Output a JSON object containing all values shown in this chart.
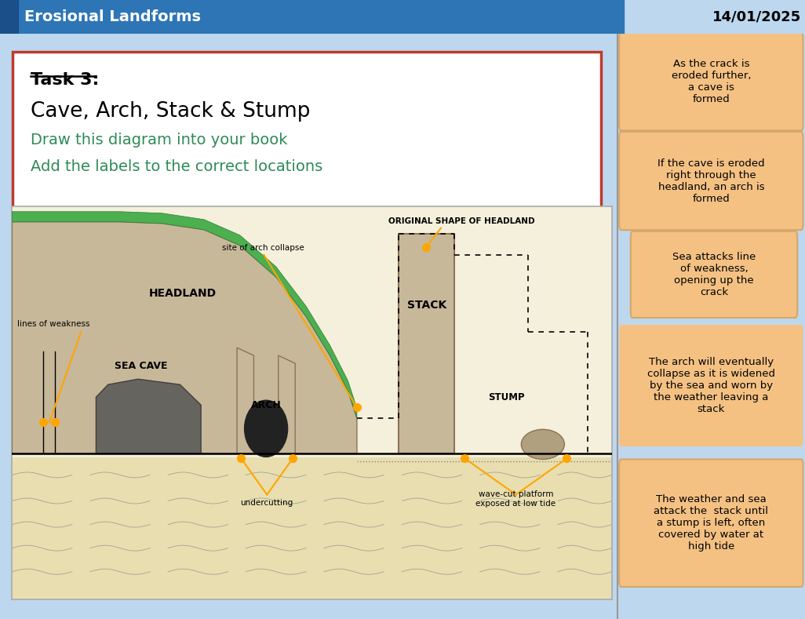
{
  "title": "Erosional Landforms",
  "date": "14/01/2025",
  "bg_color": "#BDD7EE",
  "header_bg": "#2E75B6",
  "header_dark": "#1A4F8A",
  "task_title": "Task 3:",
  "task_subtitle": "Cave, Arch, Stack & Stump",
  "task_line1": "Draw this diagram into your book",
  "task_line2": "Add the labels to the correct locations",
  "task_green_color": "#2E8B57",
  "task_box_border": "#C0392B",
  "orange": "#FFA500",
  "diag_bg": "#F5F0DC",
  "cliff_color": "#C8B89A",
  "cliff_edge": "#8B7355",
  "cave_color": "#555555",
  "veg_color": "#4CAF50",
  "veg_edge": "#2E7D32",
  "right_boxes": [
    {
      "text": "As the crack is\neroded further,\na cave is\nformed",
      "bg": "#F4C183",
      "border": "#D4A76A",
      "smaller": false
    },
    {
      "text": "If the cave is eroded\nright through the\nheadland, an arch is\nformed",
      "bg": "#F4C183",
      "border": "#D4A76A",
      "smaller": false
    },
    {
      "text": "Sea attacks line\nof weakness,\nopening up the\ncrack",
      "bg": "#F4C183",
      "border": "#D4A76A",
      "smaller": true
    },
    {
      "text": "The arch will eventually\ncollapse as it is widened\nby the sea and worn by\nthe weather leaving a\nstack",
      "bg": "#F4C183",
      "border": "#D4A76A",
      "smaller": false,
      "no_border": true
    },
    {
      "text": "The weather and sea\nattack the  stack until\na stump is left, often\ncovered by water at\nhigh tide",
      "bg": "#F4C183",
      "border": "#D4A76A",
      "smaller": false
    }
  ]
}
